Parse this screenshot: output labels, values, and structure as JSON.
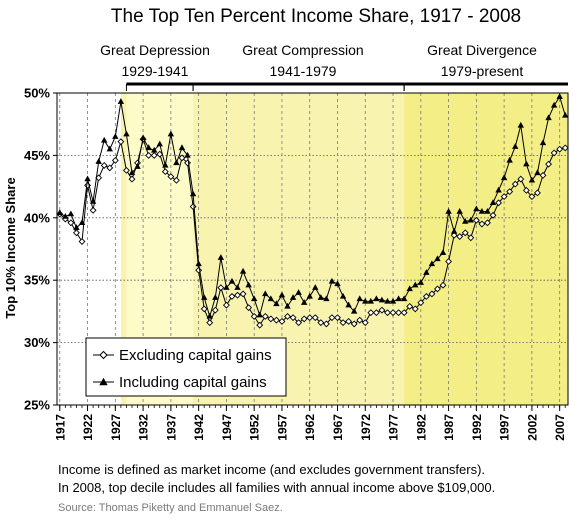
{
  "chart_data": {
    "type": "line",
    "title": "The Top Ten Percent Income Share, 1917 - 2008",
    "ylabel": "Top 10% Income Share",
    "xlabel": "",
    "xlim": [
      1917,
      2008
    ],
    "ylim": [
      25,
      50
    ],
    "yticks": [
      25,
      30,
      35,
      40,
      45,
      50
    ],
    "ytick_labels": [
      "25%",
      "30%",
      "35%",
      "40%",
      "45%",
      "50%"
    ],
    "xticks": [
      1917,
      1922,
      1927,
      1932,
      1937,
      1942,
      1947,
      1952,
      1957,
      1962,
      1967,
      1972,
      1977,
      1982,
      1987,
      1992,
      1997,
      2002,
      2007
    ],
    "xtick_labels": [
      "1917",
      "1922",
      "1927",
      "1932",
      "1937",
      "1942",
      "1947",
      "1952",
      "1957",
      "1962",
      "1967",
      "1972",
      "1977",
      "1982",
      "1987",
      "1992",
      "1997",
      "2002",
      "2007"
    ],
    "grid": "vertical dashed lines at ticks, horizontal dotted lines",
    "legend_position": "bottom-left",
    "eras": [
      {
        "name": "Great Depression",
        "years": "1929-1941",
        "start": 1929,
        "end": 1941,
        "shade": "#fdfbc8"
      },
      {
        "name": "Great Compression",
        "years": "1941-1979",
        "start": 1941,
        "end": 1979,
        "shade": "#f8f4b0"
      },
      {
        "name": "Great Divergence",
        "years": "1979-present",
        "start": 1979,
        "end": 2008,
        "shade": "#f4ee86"
      }
    ],
    "early_shade": {
      "start": 1928,
      "end": 1929,
      "shade": "#f8f4b0"
    },
    "x": [
      1917,
      1918,
      1919,
      1920,
      1921,
      1922,
      1923,
      1924,
      1925,
      1926,
      1927,
      1928,
      1929,
      1930,
      1931,
      1932,
      1933,
      1934,
      1935,
      1936,
      1937,
      1938,
      1939,
      1940,
      1941,
      1942,
      1943,
      1944,
      1945,
      1946,
      1947,
      1948,
      1949,
      1950,
      1951,
      1952,
      1953,
      1954,
      1955,
      1956,
      1957,
      1958,
      1959,
      1960,
      1961,
      1962,
      1963,
      1964,
      1965,
      1966,
      1967,
      1968,
      1969,
      1970,
      1971,
      1972,
      1973,
      1974,
      1975,
      1976,
      1977,
      1978,
      1979,
      1980,
      1981,
      1982,
      1983,
      1984,
      1985,
      1986,
      1987,
      1988,
      1989,
      1990,
      1991,
      1992,
      1993,
      1994,
      1995,
      1996,
      1997,
      1998,
      1999,
      2000,
      2001,
      2002,
      2003,
      2004,
      2005,
      2006,
      2007,
      2008
    ],
    "series": [
      {
        "name": "Excluding capital gains",
        "marker": "open-diamond",
        "values": [
          40.3,
          39.9,
          39.6,
          38.8,
          38.1,
          42.6,
          40.6,
          43.2,
          44.2,
          44.0,
          44.6,
          46.1,
          43.8,
          43.1,
          44.4,
          46.3,
          45.0,
          45.0,
          45.1,
          43.7,
          43.3,
          43.0,
          44.8,
          44.4,
          40.9,
          35.8,
          32.7,
          31.6,
          32.6,
          34.4,
          33.0,
          33.7,
          33.8,
          33.9,
          32.8,
          32.1,
          31.4,
          32.1,
          31.9,
          31.8,
          31.7,
          32.1,
          32.0,
          31.6,
          31.9,
          32.0,
          32.0,
          31.6,
          31.5,
          32.0,
          32.0,
          31.6,
          31.7,
          31.5,
          31.8,
          31.6,
          32.4,
          32.4,
          32.6,
          32.4,
          32.4,
          32.4,
          32.4,
          32.9,
          32.7,
          33.2,
          33.7,
          33.9,
          34.3,
          34.6,
          36.5,
          38.6,
          38.5,
          38.8,
          38.4,
          39.8,
          39.5,
          39.6,
          40.2,
          41.2,
          41.7,
          42.1,
          42.7,
          43.1,
          42.2,
          41.7,
          42.0,
          43.4,
          44.3,
          45.2,
          45.5,
          45.6
        ]
      },
      {
        "name": "Including capital gains",
        "marker": "filled-triangle",
        "values": [
          40.4,
          40.1,
          40.3,
          39.2,
          39.6,
          43.1,
          41.3,
          44.5,
          46.2,
          45.5,
          46.5,
          49.3,
          46.7,
          43.6,
          44.1,
          46.4,
          45.6,
          45.4,
          45.9,
          44.2,
          46.7,
          44.4,
          45.6,
          45.0,
          41.9,
          36.3,
          33.6,
          32.1,
          33.6,
          36.8,
          34.4,
          34.9,
          34.4,
          35.7,
          34.6,
          33.5,
          32.2,
          33.9,
          33.5,
          33.1,
          33.8,
          32.9,
          33.6,
          34.0,
          33.2,
          33.7,
          34.4,
          33.6,
          33.5,
          34.9,
          34.7,
          33.7,
          33.0,
          32.5,
          33.5,
          33.3,
          33.3,
          33.5,
          33.4,
          33.3,
          33.3,
          33.5,
          33.5,
          34.3,
          34.6,
          34.8,
          35.6,
          36.3,
          36.7,
          37.2,
          40.5,
          38.9,
          40.5,
          39.7,
          39.8,
          40.7,
          40.5,
          40.5,
          41.2,
          42.2,
          43.2,
          44.6,
          45.7,
          47.4,
          44.3,
          43.0,
          43.6,
          46.0,
          48.0,
          49.0,
          49.7,
          48.2
        ]
      }
    ]
  },
  "notes": {
    "line1": "Income is defined as market income (and excludes government transfers).",
    "line2": "In 2008, top decile includes all families with annual income above $109,000.",
    "source": "Source: Thomas Piketty and Emmanuel Saez."
  }
}
